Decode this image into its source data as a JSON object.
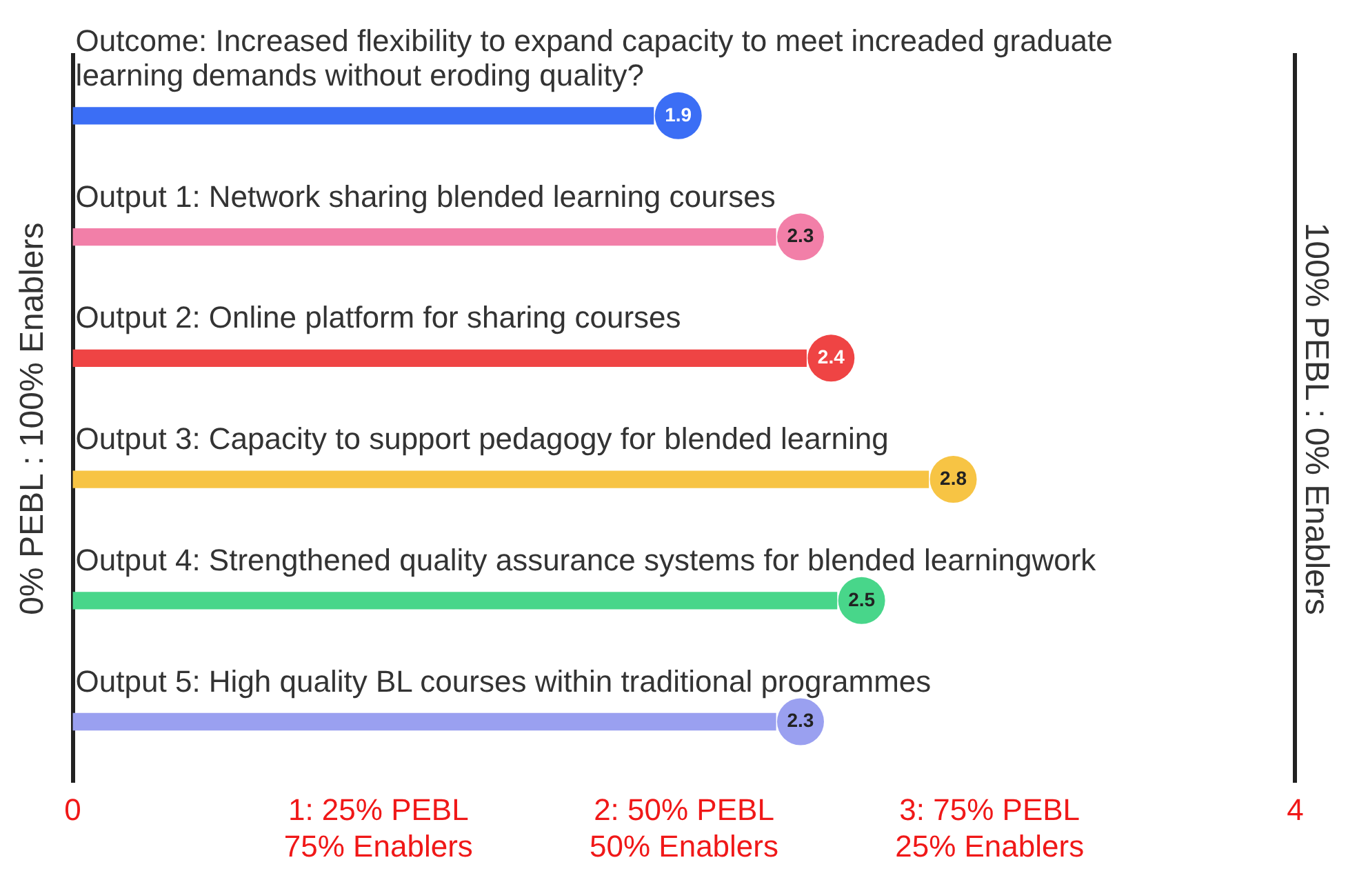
{
  "chart_data": {
    "type": "bar",
    "orientation": "horizontal",
    "ylabel": "0% PEBL : 100% Enablers",
    "y2label": "100% PEBL : 0% Enablers",
    "categories": [
      "Outcome: Increased flexibility to expand capacity to meet increaded graduate learning demands without eroding quality?",
      "Output 1: Network sharing blended learning courses",
      "Output 2: Online platform for sharing courses",
      "Output 3: Capacity to support pedagogy for blended learning",
      "Output 4: Strengthened quality assurance systems for blended learningwork",
      "Output 5: High quality BL courses within traditional programmes"
    ],
    "values": [
      1.9,
      2.3,
      2.4,
      2.8,
      2.5,
      2.3
    ],
    "colors": [
      "#3b6ef5",
      "#f27fa8",
      "#ef4444",
      "#f7c444",
      "#48d68a",
      "#9aa0f0"
    ],
    "xlim": [
      0,
      4
    ],
    "xticks": [
      0,
      {
        "value": 1,
        "label": "1: 25% PEBL\n75% Enablers"
      },
      {
        "value": 2,
        "label": "2: 50% PEBL\n50% Enablers"
      },
      {
        "value": 3,
        "label": "3: 75% PEBL\n25% Enablers"
      },
      4
    ],
    "data_labels": true,
    "grid": false,
    "legend": false
  }
}
